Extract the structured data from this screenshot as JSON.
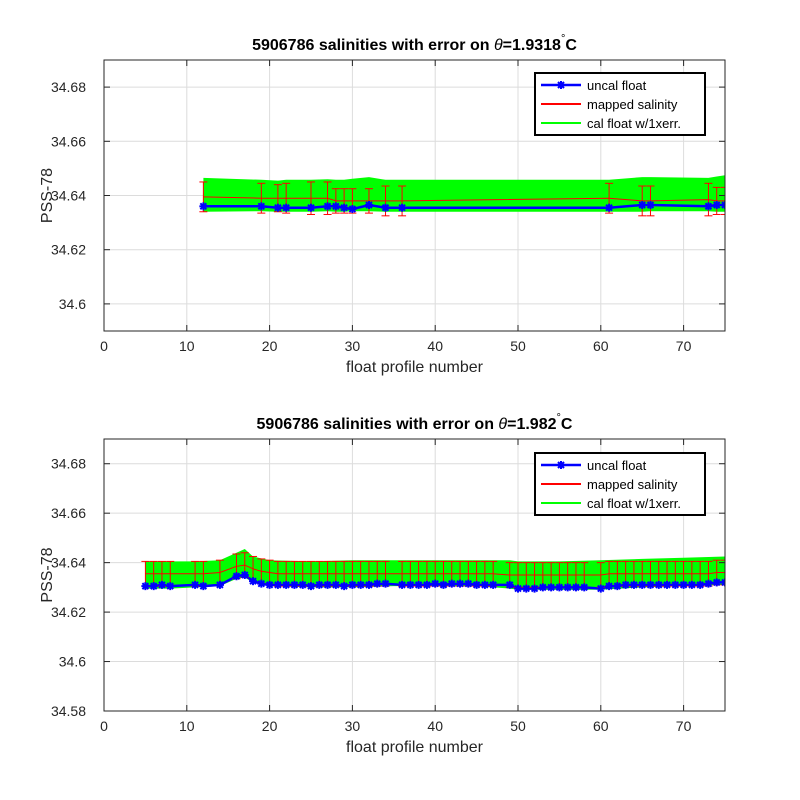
{
  "chart_data": [
    {
      "type": "line",
      "title_prefix": "5906786 salinities with error on ",
      "title_theta": "θ",
      "title_value": "=1.9318",
      "title_degree": "°",
      "title_unit": "C",
      "xlabel": "float profile number",
      "ylabel": "PSS-78",
      "xlim": [
        0,
        75
      ],
      "ylim": [
        34.59,
        34.69
      ],
      "xticks": [
        0,
        10,
        20,
        30,
        40,
        50,
        60,
        70
      ],
      "yticks": [
        34.6,
        34.62,
        34.64,
        34.66,
        34.68
      ],
      "ytick_labels": [
        "34.6",
        "34.62",
        "34.64",
        "34.66",
        "34.68"
      ],
      "grid": true,
      "legend_position": "top-right",
      "legend": [
        "uncal float",
        "mapped salinity",
        "cal float w/1xerr."
      ],
      "series": [
        {
          "name": "uncal float",
          "color": "#0000ff",
          "x": [
            12,
            19,
            21,
            22,
            25,
            27,
            28,
            29,
            30,
            32,
            34,
            36,
            61,
            65,
            66,
            73,
            74,
            75
          ],
          "y": [
            34.636,
            34.636,
            34.6355,
            34.6355,
            34.6355,
            34.636,
            34.636,
            34.6355,
            34.635,
            34.6365,
            34.6355,
            34.6355,
            34.6355,
            34.6365,
            34.6365,
            34.636,
            34.6365,
            34.6365
          ]
        },
        {
          "name": "mapped salinity",
          "color": "#ff0000",
          "x": [
            12,
            19,
            21,
            22,
            25,
            27,
            28,
            29,
            30,
            32,
            34,
            36,
            61,
            65,
            66,
            73,
            74,
            75
          ],
          "y": [
            34.6395,
            34.639,
            34.639,
            34.639,
            34.639,
            34.639,
            34.638,
            34.638,
            34.638,
            34.638,
            34.638,
            34.638,
            34.639,
            34.638,
            34.638,
            34.6385,
            34.638,
            34.638
          ],
          "err": [
            0.0055,
            0.0055,
            0.005,
            0.0055,
            0.006,
            0.006,
            0.0045,
            0.0045,
            0.0045,
            0.0045,
            0.0055,
            0.0055,
            0.0055,
            0.0055,
            0.0055,
            0.006,
            0.005,
            0.005
          ]
        },
        {
          "name": "cal float w/1xerr.",
          "color": "#00ff00",
          "x": [
            12,
            19,
            21,
            22,
            25,
            27,
            28,
            29,
            30,
            32,
            34,
            36,
            61,
            65,
            66,
            73,
            74,
            75
          ],
          "upper": [
            34.6465,
            34.6458,
            34.6455,
            34.6458,
            34.6458,
            34.646,
            34.6458,
            34.6458,
            34.6462,
            34.6468,
            34.6458,
            34.6458,
            34.6458,
            34.6468,
            34.6468,
            34.6465,
            34.647,
            34.6475
          ],
          "lower": [
            34.634,
            34.6342,
            34.634,
            34.634,
            34.634,
            34.6342,
            34.634,
            34.634,
            34.6342,
            34.6342,
            34.634,
            34.634,
            34.634,
            34.634,
            34.6342,
            34.6342,
            34.634,
            34.634
          ]
        }
      ]
    },
    {
      "type": "line",
      "title_prefix": "5906786 salinities with error on ",
      "title_theta": "θ",
      "title_value": "=1.982",
      "title_degree": "°",
      "title_unit": "C",
      "xlabel": "float profile number",
      "ylabel": "PSS-78",
      "xlim": [
        0,
        75
      ],
      "ylim": [
        34.58,
        34.69
      ],
      "xticks": [
        0,
        10,
        20,
        30,
        40,
        50,
        60,
        70
      ],
      "yticks": [
        34.58,
        34.6,
        34.62,
        34.64,
        34.66,
        34.68
      ],
      "ytick_labels": [
        "34.58",
        "34.6",
        "34.62",
        "34.64",
        "34.66",
        "34.68"
      ],
      "grid": true,
      "legend_position": "top-right",
      "legend": [
        "uncal float",
        "mapped salinity",
        "cal float w/1xerr."
      ],
      "series": [
        {
          "name": "uncal float",
          "color": "#0000ff",
          "x": [
            5,
            6,
            7,
            8,
            11,
            12,
            14,
            16,
            17,
            18,
            19,
            20,
            21,
            22,
            23,
            24,
            25,
            26,
            27,
            28,
            29,
            30,
            31,
            32,
            33,
            34,
            36,
            37,
            38,
            39,
            40,
            41,
            42,
            43,
            44,
            45,
            46,
            47,
            49,
            50,
            51,
            52,
            53,
            54,
            55,
            56,
            57,
            58,
            60,
            61,
            62,
            63,
            64,
            65,
            66,
            67,
            68,
            69,
            70,
            71,
            72,
            73,
            74,
            75
          ],
          "y": [
            34.6305,
            34.6305,
            34.631,
            34.6305,
            34.631,
            34.6305,
            34.631,
            34.6345,
            34.635,
            34.6325,
            34.6315,
            34.631,
            34.631,
            34.631,
            34.631,
            34.631,
            34.6305,
            34.631,
            34.631,
            34.631,
            34.6305,
            34.631,
            34.631,
            34.631,
            34.6315,
            34.6315,
            34.631,
            34.631,
            34.631,
            34.631,
            34.6315,
            34.631,
            34.6315,
            34.6315,
            34.6315,
            34.631,
            34.631,
            34.631,
            34.631,
            34.6295,
            34.6295,
            34.6295,
            34.63,
            34.63,
            34.63,
            34.63,
            34.63,
            34.63,
            34.6295,
            34.6305,
            34.6305,
            34.631,
            34.631,
            34.631,
            34.631,
            34.631,
            34.631,
            34.631,
            34.631,
            34.631,
            34.631,
            34.6315,
            34.632,
            34.632
          ]
        },
        {
          "name": "mapped salinity",
          "color": "#ff0000",
          "x": [
            5,
            6,
            7,
            8,
            11,
            12,
            14,
            16,
            17,
            18,
            19,
            20,
            21,
            22,
            23,
            24,
            25,
            26,
            27,
            28,
            29,
            30,
            31,
            32,
            33,
            34,
            36,
            37,
            38,
            39,
            40,
            41,
            42,
            43,
            44,
            45,
            46,
            47,
            49,
            50,
            51,
            52,
            53,
            54,
            55,
            56,
            57,
            58,
            60,
            61,
            62,
            63,
            64,
            65,
            66,
            67,
            68,
            69,
            70,
            71,
            72,
            73,
            74,
            75
          ],
          "y": [
            34.6355,
            34.6355,
            34.6355,
            34.6355,
            34.6355,
            34.6355,
            34.636,
            34.6385,
            34.639,
            34.6375,
            34.6365,
            34.636,
            34.6355,
            34.6355,
            34.6355,
            34.6355,
            34.6355,
            34.6355,
            34.6355,
            34.6355,
            34.6355,
            34.6355,
            34.6355,
            34.6355,
            34.6355,
            34.6355,
            34.6355,
            34.6355,
            34.6355,
            34.6355,
            34.6355,
            34.6355,
            34.6355,
            34.6355,
            34.6355,
            34.6355,
            34.6355,
            34.6355,
            34.635,
            34.635,
            34.635,
            34.635,
            34.635,
            34.635,
            34.635,
            34.635,
            34.635,
            34.635,
            34.635,
            34.6355,
            34.6355,
            34.6355,
            34.6355,
            34.6355,
            34.6355,
            34.6355,
            34.6355,
            34.6355,
            34.6355,
            34.6355,
            34.6355,
            34.6355,
            34.636,
            34.636
          ],
          "err": [
            0.005,
            0.005,
            0.005,
            0.005,
            0.005,
            0.005,
            0.005,
            0.005,
            0.005,
            0.005,
            0.005,
            0.005,
            0.005,
            0.005,
            0.005,
            0.005,
            0.005,
            0.005,
            0.005,
            0.005,
            0.005,
            0.005,
            0.005,
            0.005,
            0.005,
            0.005,
            0.005,
            0.005,
            0.005,
            0.005,
            0.005,
            0.005,
            0.005,
            0.005,
            0.005,
            0.005,
            0.005,
            0.005,
            0.005,
            0.005,
            0.005,
            0.005,
            0.005,
            0.005,
            0.005,
            0.005,
            0.005,
            0.005,
            0.005,
            0.005,
            0.005,
            0.005,
            0.005,
            0.005,
            0.005,
            0.005,
            0.005,
            0.005,
            0.005,
            0.005,
            0.005,
            0.005,
            0.005,
            0.005
          ]
        },
        {
          "name": "cal float w/1xerr.",
          "color": "#00ff00",
          "x": [
            5,
            8,
            11,
            14,
            16,
            17,
            18,
            20,
            25,
            30,
            35,
            40,
            45,
            49,
            50,
            55,
            60,
            65,
            70,
            75
          ],
          "upper": [
            34.6405,
            34.6405,
            34.6405,
            34.641,
            34.644,
            34.6455,
            34.6425,
            34.641,
            34.6405,
            34.641,
            34.641,
            34.641,
            34.641,
            34.641,
            34.6405,
            34.6405,
            34.641,
            34.6415,
            34.642,
            34.6425
          ],
          "lower": [
            34.6295,
            34.6295,
            34.63,
            34.6305,
            34.6335,
            34.634,
            34.632,
            34.6305,
            34.63,
            34.63,
            34.6305,
            34.6305,
            34.6305,
            34.6295,
            34.629,
            34.629,
            34.629,
            34.63,
            34.6305,
            34.631
          ]
        }
      ]
    }
  ]
}
